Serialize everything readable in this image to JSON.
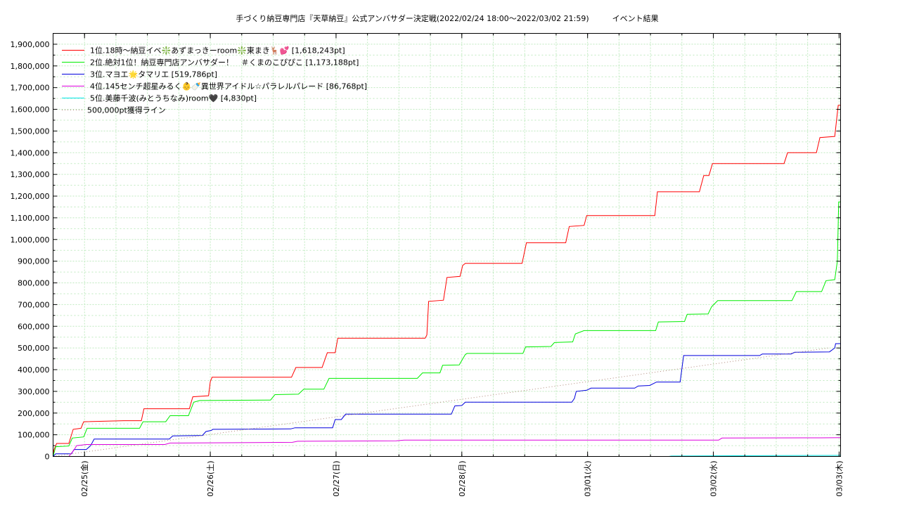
{
  "chart_data": {
    "type": "line",
    "title": "手づくり納豆専門店『天草納豆』公式アンバサダー決定戦(2022/02/24 18:00～2022/03/02 21:59)　　　イベント結果",
    "xlabel": "",
    "ylabel": "",
    "x_range": [
      "2022-02-24T18:00",
      "2022-03-03T00:17"
    ],
    "ylim": [
      0,
      1950000
    ],
    "y_ticks": [
      0,
      100000,
      200000,
      300000,
      400000,
      500000,
      600000,
      700000,
      800000,
      900000,
      1000000,
      1100000,
      1200000,
      1300000,
      1400000,
      1500000,
      1600000,
      1700000,
      1800000,
      1900000
    ],
    "y_tick_labels": [
      "0",
      "100,000",
      "200,000",
      "300,000",
      "400,000",
      "500,000",
      "600,000",
      "700,000",
      "800,000",
      "900,000",
      "1,000,000",
      "1,100,000",
      "1,200,000",
      "1,300,000",
      "1,400,000",
      "1,500,000",
      "1,600,000",
      "1,700,000",
      "1,800,000",
      "1,900,000"
    ],
    "x_ticks": [
      "2022-02-25T00:00",
      "2022-02-26T00:00",
      "2022-02-27T00:00",
      "2022-02-28T00:00",
      "2022-03-01T00:00",
      "2022-03-02T00:00",
      "2022-03-03T00:00"
    ],
    "x_tick_labels": [
      "02/25(金)",
      "02/26(土)",
      "02/27(日)",
      "02/28(月)",
      "03/01(火)",
      "03/02(水)",
      "03/03(木)"
    ],
    "grid": true,
    "legend_position": "top-left",
    "series": [
      {
        "name": "1位.18時～納豆イベ❇️あずまっきーroom❇️東まき🦌💕 [1,618,243pt]",
        "color": "#ff0000",
        "points": [
          [
            "2022-02-24T18:00",
            0
          ],
          [
            "2022-02-24T18:10",
            30000
          ],
          [
            "2022-02-24T18:40",
            60000
          ],
          [
            "2022-02-24T21:00",
            60000
          ],
          [
            "2022-02-24T21:50",
            125000
          ],
          [
            "2022-02-24T23:20",
            130000
          ],
          [
            "2022-02-24T23:50",
            160000
          ],
          [
            "2022-02-25T07:30",
            165000
          ],
          [
            "2022-02-25T08:30",
            165000
          ],
          [
            "2022-02-25T10:50",
            165000
          ],
          [
            "2022-02-25T11:20",
            220000
          ],
          [
            "2022-02-25T20:00",
            220000
          ],
          [
            "2022-02-25T20:40",
            275000
          ],
          [
            "2022-02-25T23:40",
            280000
          ],
          [
            "2022-02-26T00:00",
            345000
          ],
          [
            "2022-02-26T00:20",
            365000
          ],
          [
            "2022-02-26T15:30",
            365000
          ],
          [
            "2022-02-26T16:20",
            410000
          ],
          [
            "2022-02-26T21:20",
            410000
          ],
          [
            "2022-02-26T22:20",
            478000
          ],
          [
            "2022-02-26T23:50",
            478000
          ],
          [
            "2022-02-27T00:20",
            545000
          ],
          [
            "2022-02-27T17:00",
            545000
          ],
          [
            "2022-02-27T17:20",
            560000
          ],
          [
            "2022-02-27T17:40",
            715000
          ],
          [
            "2022-02-27T20:30",
            720000
          ],
          [
            "2022-02-27T21:10",
            825000
          ],
          [
            "2022-02-27T23:40",
            830000
          ],
          [
            "2022-02-28T00:10",
            880000
          ],
          [
            "2022-02-28T00:40",
            890000
          ],
          [
            "2022-02-28T11:30",
            890000
          ],
          [
            "2022-02-28T12:20",
            985000
          ],
          [
            "2022-02-28T19:50",
            985000
          ],
          [
            "2022-02-28T20:30",
            1060000
          ],
          [
            "2022-02-28T23:20",
            1065000
          ],
          [
            "2022-02-28T23:50",
            1110000
          ],
          [
            "2022-03-01T12:50",
            1110000
          ],
          [
            "2022-03-01T13:20",
            1220000
          ],
          [
            "2022-03-01T21:20",
            1220000
          ],
          [
            "2022-03-01T22:10",
            1295000
          ],
          [
            "2022-03-01T23:10",
            1295000
          ],
          [
            "2022-03-01T23:50",
            1350000
          ],
          [
            "2022-03-02T13:30",
            1350000
          ],
          [
            "2022-03-02T14:10",
            1400000
          ],
          [
            "2022-03-02T19:40",
            1400000
          ],
          [
            "2022-03-02T20:20",
            1470000
          ],
          [
            "2022-03-02T23:10",
            1475000
          ],
          [
            "2022-03-02T23:50",
            1618243
          ],
          [
            "2022-03-03T00:17",
            1618243
          ]
        ]
      },
      {
        "name": "2位.絶対1位！納豆専門店アンバサダー！　＃くまのこぴぴこ [1,173,188pt]",
        "color": "#00ee00",
        "points": [
          [
            "2022-02-24T18:00",
            0
          ],
          [
            "2022-02-24T18:30",
            45000
          ],
          [
            "2022-02-24T21:00",
            48000
          ],
          [
            "2022-02-24T21:40",
            85000
          ],
          [
            "2022-02-24T23:50",
            90000
          ],
          [
            "2022-02-25T00:30",
            130000
          ],
          [
            "2022-02-25T10:30",
            130000
          ],
          [
            "2022-02-25T11:10",
            160000
          ],
          [
            "2022-02-25T15:30",
            160000
          ],
          [
            "2022-02-25T16:20",
            188000
          ],
          [
            "2022-02-25T19:50",
            188000
          ],
          [
            "2022-02-25T20:50",
            250000
          ],
          [
            "2022-02-25T22:00",
            258000
          ],
          [
            "2022-02-26T11:30",
            260000
          ],
          [
            "2022-02-26T12:20",
            285000
          ],
          [
            "2022-02-26T16:50",
            287000
          ],
          [
            "2022-02-26T17:50",
            310000
          ],
          [
            "2022-02-26T21:40",
            310000
          ],
          [
            "2022-02-26T22:40",
            360000
          ],
          [
            "2022-02-27T15:30",
            360000
          ],
          [
            "2022-02-27T16:30",
            385000
          ],
          [
            "2022-02-27T19:50",
            385000
          ],
          [
            "2022-02-27T20:20",
            420000
          ],
          [
            "2022-02-27T23:30",
            422000
          ],
          [
            "2022-02-28T00:40",
            470000
          ],
          [
            "2022-02-28T01:00",
            475000
          ],
          [
            "2022-02-28T11:40",
            475000
          ],
          [
            "2022-02-28T12:10",
            505000
          ],
          [
            "2022-02-28T17:00",
            507000
          ],
          [
            "2022-02-28T17:40",
            525000
          ],
          [
            "2022-02-28T21:10",
            528000
          ],
          [
            "2022-02-28T21:40",
            565000
          ],
          [
            "2022-02-28T23:20",
            580000
          ],
          [
            "2022-03-01T13:00",
            580000
          ],
          [
            "2022-03-01T13:30",
            620000
          ],
          [
            "2022-03-01T18:30",
            622000
          ],
          [
            "2022-03-01T19:00",
            655000
          ],
          [
            "2022-03-01T23:00",
            657000
          ],
          [
            "2022-03-01T23:40",
            690000
          ],
          [
            "2022-03-02T00:50",
            718000
          ],
          [
            "2022-03-02T15:00",
            718000
          ],
          [
            "2022-03-02T15:50",
            760000
          ],
          [
            "2022-03-02T20:40",
            760000
          ],
          [
            "2022-03-02T21:30",
            810000
          ],
          [
            "2022-03-02T23:10",
            815000
          ],
          [
            "2022-03-02T23:40",
            900000
          ],
          [
            "2022-03-02T23:55",
            1173188
          ],
          [
            "2022-03-03T00:17",
            1173188
          ]
        ]
      },
      {
        "name": "3位.マヨエ🌟タマリエ [519,786pt]",
        "color": "#0000dd",
        "points": [
          [
            "2022-02-24T18:00",
            0
          ],
          [
            "2022-02-24T18:30",
            12000
          ],
          [
            "2022-02-24T21:30",
            12000
          ],
          [
            "2022-02-24T22:00",
            32000
          ],
          [
            "2022-02-25T00:20",
            32000
          ],
          [
            "2022-02-25T01:10",
            50000
          ],
          [
            "2022-02-25T01:50",
            80000
          ],
          [
            "2022-02-25T16:10",
            80000
          ],
          [
            "2022-02-25T16:50",
            95000
          ],
          [
            "2022-02-25T22:30",
            97000
          ],
          [
            "2022-02-25T23:10",
            115000
          ],
          [
            "2022-02-26T00:10",
            120000
          ],
          [
            "2022-02-26T00:30",
            125000
          ],
          [
            "2022-02-26T15:20",
            127000
          ],
          [
            "2022-02-26T16:10",
            132000
          ],
          [
            "2022-02-26T23:20",
            132000
          ],
          [
            "2022-02-26T23:50",
            170000
          ],
          [
            "2022-02-27T01:00",
            170000
          ],
          [
            "2022-02-27T01:50",
            195000
          ],
          [
            "2022-02-27T22:00",
            195000
          ],
          [
            "2022-02-27T22:40",
            233000
          ],
          [
            "2022-02-28T00:00",
            235000
          ],
          [
            "2022-02-28T00:40",
            250000
          ],
          [
            "2022-02-28T21:00",
            250000
          ],
          [
            "2022-02-28T21:30",
            268000
          ],
          [
            "2022-02-28T21:50",
            300000
          ],
          [
            "2022-02-28T23:50",
            305000
          ],
          [
            "2022-03-01T00:40",
            315000
          ],
          [
            "2022-03-01T09:00",
            315000
          ],
          [
            "2022-03-01T09:40",
            325000
          ],
          [
            "2022-03-01T11:50",
            327000
          ],
          [
            "2022-03-01T13:10",
            343000
          ],
          [
            "2022-03-01T17:40",
            343000
          ],
          [
            "2022-03-01T18:00",
            405000
          ],
          [
            "2022-03-01T18:20",
            465000
          ],
          [
            "2022-03-02T08:50",
            465000
          ],
          [
            "2022-03-02T09:20",
            472000
          ],
          [
            "2022-03-02T14:50",
            472000
          ],
          [
            "2022-03-02T15:30",
            480000
          ],
          [
            "2022-03-02T22:10",
            482000
          ],
          [
            "2022-03-02T23:10",
            500000
          ],
          [
            "2022-03-02T23:20",
            519786
          ],
          [
            "2022-03-03T00:17",
            519786
          ]
        ]
      },
      {
        "name": "4位.145センチ超星みるく👶🍼異世界アイドル☆パラレルパレード [86,768pt]",
        "color": "#dd00dd",
        "points": [
          [
            "2022-02-24T18:00",
            0
          ],
          [
            "2022-02-24T21:00",
            0
          ],
          [
            "2022-02-24T22:00",
            30000
          ],
          [
            "2022-02-24T22:30",
            50000
          ],
          [
            "2022-02-25T00:20",
            55000
          ],
          [
            "2022-02-25T15:20",
            55000
          ],
          [
            "2022-02-25T16:20",
            62000
          ],
          [
            "2022-02-26T00:00",
            63000
          ],
          [
            "2022-02-26T15:40",
            65000
          ],
          [
            "2022-02-26T16:40",
            70000
          ],
          [
            "2022-02-27T11:30",
            72000
          ],
          [
            "2022-02-27T13:00",
            75000
          ],
          [
            "2022-03-02T01:00",
            75000
          ],
          [
            "2022-03-02T01:40",
            85000
          ],
          [
            "2022-03-02T20:30",
            86000
          ],
          [
            "2022-03-03T00:17",
            86768
          ]
        ]
      },
      {
        "name": "5位.美藤千波(みとうちなみ)room🖤 [4,830pt]",
        "color": "#00e5e5",
        "points": [
          [
            "2022-03-01T15:30",
            0
          ],
          [
            "2022-03-01T16:00",
            2000
          ],
          [
            "2022-03-02T12:00",
            4000
          ],
          [
            "2022-03-03T00:17",
            4830
          ]
        ]
      },
      {
        "name": "500,000pt獲得ライン",
        "color": "#b08878",
        "dotted": true,
        "points": [
          [
            "2022-02-24T18:00",
            0
          ],
          [
            "2022-03-02T21:59",
            500000
          ]
        ]
      }
    ]
  }
}
